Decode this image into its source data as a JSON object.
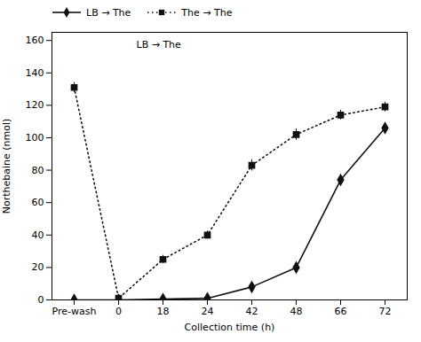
{
  "chart_data": {
    "type": "line",
    "xlabel": "Collection time (h)",
    "ylabel": "Northebaine (nmol)",
    "annotations": [
      "LB → The"
    ],
    "categories": [
      "Pre-wash",
      "0",
      "18",
      "24",
      "42",
      "48",
      "66",
      "72"
    ],
    "series": [
      {
        "name": "LB → The",
        "color": "#111111",
        "marker": "diamond",
        "line_style": "solid",
        "values": [
          0,
          0,
          0.5,
          1,
          8,
          20,
          74,
          106
        ],
        "yerr": [
          0.5,
          0.5,
          0.5,
          0.5,
          1.5,
          2.5,
          3.0,
          3.0
        ]
      },
      {
        "name": "The → The",
        "color": "#111111",
        "marker": "square",
        "line_style": "dotted",
        "values": [
          131,
          1,
          25,
          40,
          83,
          102,
          114,
          119
        ],
        "yerr": [
          3.0,
          1.0,
          2.5,
          2.5,
          3.5,
          3.5,
          3.0,
          3.0
        ]
      }
    ],
    "ylim": [
      0,
      165
    ],
    "yticks": [
      0,
      20,
      40,
      60,
      80,
      100,
      120,
      140,
      160
    ],
    "grid": false,
    "legend": "upper left"
  }
}
